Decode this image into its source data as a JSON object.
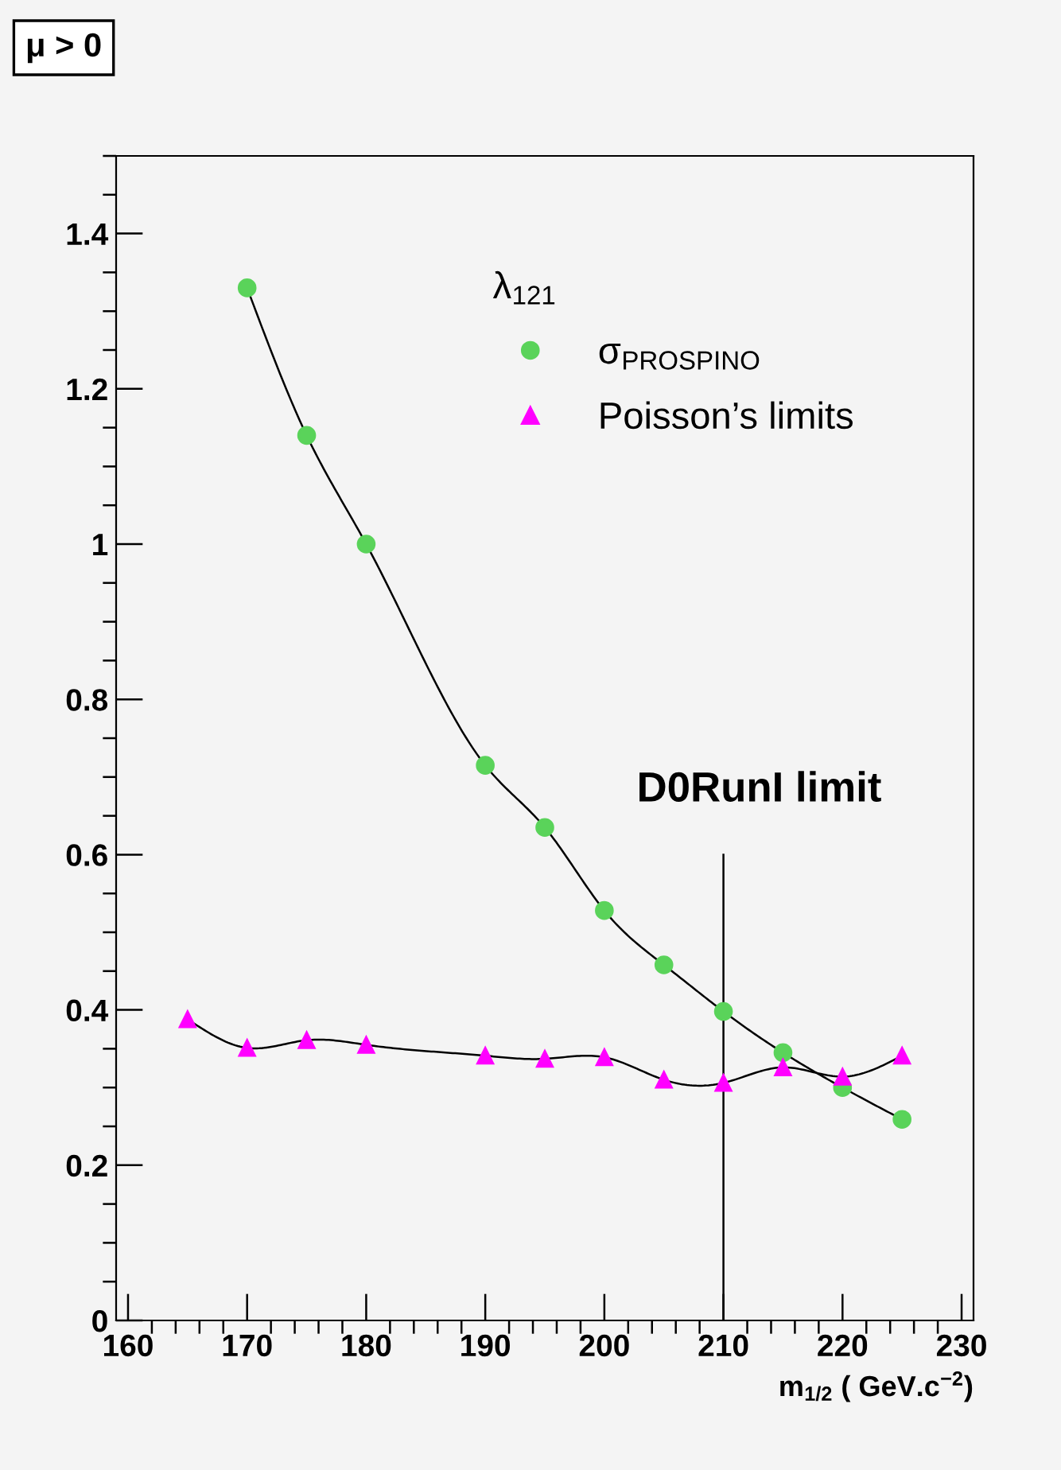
{
  "chart_data": {
    "type": "line",
    "title": "μ > 0",
    "xlabel": "m$_{1/2}$ ( GeV.c$^{−2}$)",
    "legend_title": "λ$_{121}$",
    "x": [
      165,
      170,
      175,
      180,
      190,
      195,
      200,
      205,
      210,
      215,
      220,
      225
    ],
    "series": [
      {
        "name": "σ$_{PROSPINO}$",
        "color": "#5ad35a",
        "marker": "circle",
        "x": [
          170,
          175,
          180,
          190,
          195,
          200,
          205,
          210,
          215,
          220,
          225
        ],
        "values": [
          1.33,
          1.14,
          1.0,
          0.715,
          0.635,
          0.528,
          0.458,
          0.398,
          0.345,
          0.3,
          0.259
        ]
      },
      {
        "name": "Poisson’s limits",
        "color": "#ff00ff",
        "marker": "triangle",
        "values": [
          0.388,
          0.351,
          0.361,
          0.355,
          0.341,
          0.337,
          0.339,
          0.31,
          0.306,
          0.326,
          0.314,
          0.341
        ]
      }
    ],
    "xlim": [
      159,
      231
    ],
    "xticks": [
      160,
      170,
      180,
      190,
      200,
      210,
      220,
      230
    ],
    "ylim": [
      0,
      1.5
    ],
    "yticks": [
      0,
      0.2,
      0.4,
      0.6,
      0.8,
      1,
      1.2,
      1.4
    ],
    "ref_lines": [
      {
        "axis": "x",
        "value": 210,
        "label": "D0RunI limit",
        "color": "#000000"
      }
    ],
    "grid": false,
    "legend": "top right"
  }
}
